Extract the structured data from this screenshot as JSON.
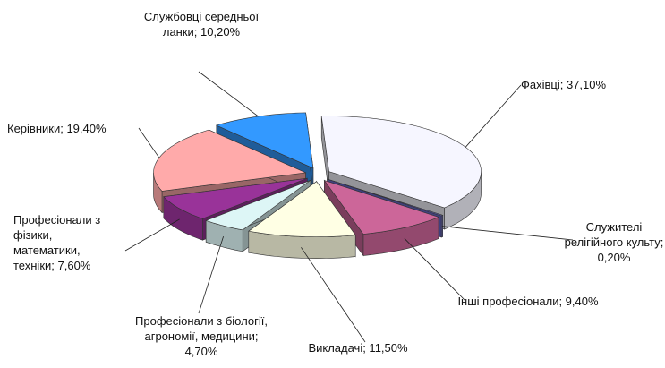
{
  "chart_data": {
    "type": "pie3d",
    "value_labels": [
      "Фахівці; 37,10%",
      "Служителі релігійного культу; 0,20%",
      "Інші професіонали; 9,40%",
      "Викладачі; 11,50%",
      "Професіонали з біології, агрономії, медицини; 4,70%",
      "Професіонали з фізики, математики, техніки; 7,60%",
      "Керівники; 19,40%",
      "Службовці середньої ланки; 10,20%"
    ],
    "values": [
      37.1,
      0.2,
      9.4,
      11.5,
      4.7,
      7.6,
      19.4,
      10.2
    ],
    "colors": [
      "#f6f6ff",
      "#6a6ad0",
      "#cc6699",
      "#ffffe4",
      "#ddf6f6",
      "#993399",
      "#ffaaaa",
      "#3399ff"
    ]
  }
}
